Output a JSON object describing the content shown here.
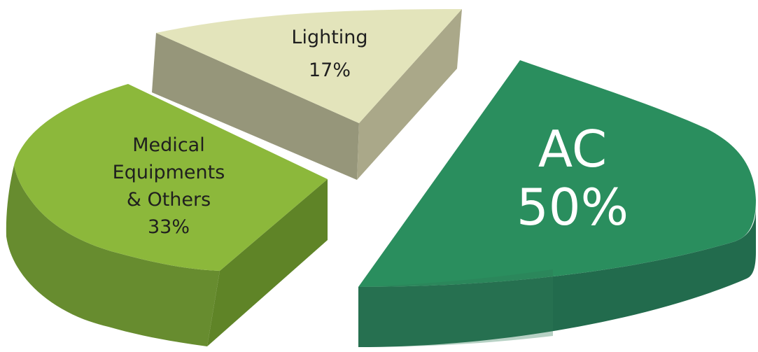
{
  "chart_data": {
    "type": "pie",
    "title": "",
    "slices": [
      {
        "label_lines": [
          "AC"
        ],
        "percent": "50%",
        "value": 50,
        "color": "#2a8e5e"
      },
      {
        "label_lines": [
          "Medical",
          "Equipments",
          "& Others"
        ],
        "percent": "33%",
        "value": 33,
        "color": "#8cb83b"
      },
      {
        "label_lines": [
          "Lighting"
        ],
        "percent": "17%",
        "value": 17,
        "color": "#e3e4bb"
      }
    ]
  }
}
